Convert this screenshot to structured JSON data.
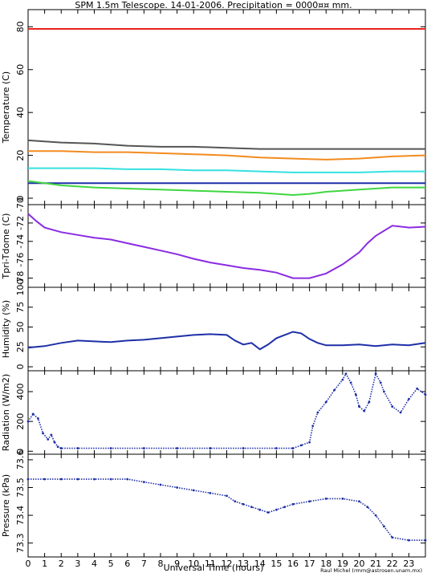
{
  "header": {
    "title": "SPM 1.5m Telescope. 14-01-2006. Precipitation = 0000¤¤ mm.",
    "credit": "Raul Michel (rmm@astrosen.unam.mx)"
  },
  "xaxis": {
    "label": "Universal Time (hours)",
    "ticks": [
      "0",
      "1",
      "2",
      "3",
      "4",
      "5",
      "6",
      "7",
      "8",
      "9",
      "10",
      "11",
      "12",
      "13",
      "14",
      "15",
      "16",
      "17",
      "18",
      "19",
      "20",
      "21",
      "22",
      "23"
    ]
  },
  "chart_data": [
    {
      "type": "line",
      "ylabel": "Temperature (C)",
      "xlim": [
        0,
        24
      ],
      "ylim": [
        -3,
        88
      ],
      "yticks": [
        0,
        20,
        40,
        60,
        80
      ],
      "series": [
        {
          "color": "#e8231c",
          "x": [
            0,
            6,
            12,
            18,
            24
          ],
          "y": [
            79,
            79,
            79,
            79,
            79
          ]
        },
        {
          "color": "#555555",
          "x": [
            0,
            2,
            4,
            6,
            8,
            10,
            12,
            14,
            16,
            18,
            20,
            22,
            24
          ],
          "y": [
            27,
            26,
            25.5,
            24.5,
            24,
            24,
            23.5,
            23,
            23,
            23,
            23,
            23,
            23
          ]
        },
        {
          "color": "#f28b1e",
          "x": [
            0,
            2,
            4,
            6,
            8,
            10,
            12,
            14,
            16,
            18,
            20,
            22,
            24
          ],
          "y": [
            22,
            22,
            21.5,
            21.5,
            21,
            20.5,
            20,
            19,
            18.5,
            18,
            18.5,
            19.5,
            20
          ]
        },
        {
          "color": "#35e0e0",
          "x": [
            0,
            2,
            4,
            6,
            8,
            10,
            12,
            14,
            16,
            18,
            20,
            22,
            24
          ],
          "y": [
            14,
            14,
            14,
            13.5,
            13.5,
            13,
            13,
            12.5,
            12,
            12,
            12,
            12.5,
            12.5
          ]
        },
        {
          "color": "#1e2fa8",
          "x": [
            0,
            6,
            12,
            18,
            24
          ],
          "y": [
            7,
            7,
            7,
            7,
            7
          ]
        },
        {
          "color": "#3fd63f",
          "x": [
            0,
            1,
            2,
            4,
            6,
            8,
            10,
            12,
            14,
            16,
            17,
            18,
            20,
            22,
            24
          ],
          "y": [
            8,
            7,
            6,
            5,
            4.5,
            4,
            3.5,
            3,
            2.5,
            1.5,
            2,
            3,
            4,
            5,
            5
          ]
        }
      ]
    },
    {
      "type": "line",
      "ylabel": "Tpri-Tdome (C)",
      "xlim": [
        0,
        24
      ],
      "ylim": [
        -79,
        -70
      ],
      "yticks": [
        -78,
        -76,
        -74,
        -72,
        -70
      ],
      "yticklabels": [
        "-78",
        "-76",
        "-74",
        "-72",
        "-70"
      ],
      "series": [
        {
          "color": "#8a2be2",
          "x": [
            0,
            0.5,
            1,
            2,
            3,
            4,
            5,
            6,
            7,
            8,
            9,
            10,
            11,
            12,
            13,
            14,
            15,
            16,
            17,
            18,
            19,
            20,
            20.5,
            21,
            22,
            23,
            24
          ],
          "y": [
            -71,
            -71.8,
            -72.5,
            -73,
            -73.3,
            -73.6,
            -73.8,
            -74.2,
            -74.6,
            -75,
            -75.4,
            -75.9,
            -76.3,
            -76.6,
            -76.9,
            -77.1,
            -77.4,
            -78,
            -78,
            -77.5,
            -76.5,
            -75.2,
            -74.2,
            -73.4,
            -72.3,
            -72.5,
            -72.4
          ]
        }
      ]
    },
    {
      "type": "line",
      "ylabel": "Humidity (%)",
      "xlim": [
        0,
        24
      ],
      "ylim": [
        -5,
        100
      ],
      "yticks": [
        0,
        25,
        50,
        75,
        100
      ],
      "series": [
        {
          "color": "#1e2fa8",
          "x": [
            0,
            1,
            2,
            3,
            4,
            5,
            6,
            7,
            8,
            9,
            10,
            11,
            12,
            12.5,
            13,
            13.5,
            14,
            14.5,
            15,
            15.5,
            16,
            16.5,
            17,
            17.5,
            18,
            19,
            20,
            21,
            22,
            23,
            24
          ],
          "y": [
            24,
            26,
            30,
            33,
            32,
            31,
            33,
            34,
            36,
            38,
            40,
            41,
            40,
            33,
            28,
            30,
            22,
            28,
            36,
            40,
            44,
            42,
            35,
            30,
            27,
            27,
            28,
            26,
            28,
            27,
            30
          ]
        }
      ]
    },
    {
      "type": "scatter",
      "ylabel": "Radiation (W/m2)",
      "xlim": [
        0,
        24
      ],
      "ylim": [
        -20,
        540
      ],
      "yticks": [
        0,
        200,
        400
      ],
      "series": [
        {
          "color": "#1e2fa8",
          "x": [
            0,
            0.3,
            0.6,
            0.9,
            1.2,
            1.4,
            1.6,
            1.8,
            2,
            3,
            5,
            7,
            9,
            11,
            13,
            15,
            16,
            16.5,
            17,
            17.2,
            17.5,
            18,
            18.5,
            19,
            19.2,
            19.5,
            19.8,
            20,
            20.3,
            20.6,
            21,
            21.3,
            21.5,
            22,
            22.5,
            23,
            23.5,
            24
          ],
          "y": [
            200,
            250,
            220,
            120,
            80,
            110,
            60,
            30,
            20,
            20,
            20,
            20,
            20,
            20,
            20,
            20,
            20,
            40,
            60,
            170,
            260,
            330,
            410,
            480,
            520,
            460,
            380,
            300,
            270,
            330,
            520,
            460,
            400,
            300,
            260,
            350,
            420,
            380
          ]
        }
      ]
    },
    {
      "type": "scatter",
      "ylabel": "Pressure (kPa)",
      "xlim": [
        0,
        24
      ],
      "ylim": [
        73.25,
        73.62
      ],
      "yticks": [
        73.3,
        73.4,
        73.5,
        73.6
      ],
      "yticklabels": [
        "73.3",
        "73.4",
        "73.5",
        "73.6"
      ],
      "series": [
        {
          "color": "#1e2fa8",
          "x": [
            0,
            1,
            2,
            3,
            4,
            5,
            6,
            7,
            8,
            9,
            10,
            11,
            12,
            12.5,
            13,
            13.5,
            14,
            14.5,
            15,
            15.5,
            16,
            17,
            18,
            19,
            20,
            20.5,
            21,
            21.5,
            22,
            23,
            24
          ],
          "y": [
            73.53,
            73.53,
            73.53,
            73.53,
            73.53,
            73.53,
            73.53,
            73.52,
            73.51,
            73.5,
            73.49,
            73.48,
            73.47,
            73.45,
            73.44,
            73.43,
            73.42,
            73.41,
            73.42,
            73.43,
            73.44,
            73.45,
            73.46,
            73.46,
            73.45,
            73.43,
            73.4,
            73.36,
            73.32,
            73.31,
            73.31
          ]
        }
      ]
    }
  ]
}
